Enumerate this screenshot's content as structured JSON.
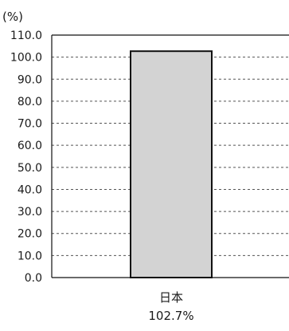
{
  "chart_data": {
    "type": "bar",
    "unit_label": "(%)",
    "categories": [
      "日本"
    ],
    "values": [
      102.7
    ],
    "value_labels": [
      "102.7%"
    ],
    "ylim": [
      0,
      110
    ],
    "yticks": [
      0,
      10,
      20,
      30,
      40,
      50,
      60,
      70,
      80,
      90,
      100,
      110
    ],
    "ytick_labels": [
      "0.0",
      "10.0",
      "20.0",
      "30.0",
      "40.0",
      "50.0",
      "60.0",
      "70.0",
      "80.0",
      "90.0",
      "100.0",
      "110.0"
    ],
    "grid": "dashed horizontal",
    "colors": {
      "bar_fill": "#d3d3d3",
      "bar_stroke": "#111111",
      "grid": "#555555",
      "axis": "#111111"
    }
  }
}
